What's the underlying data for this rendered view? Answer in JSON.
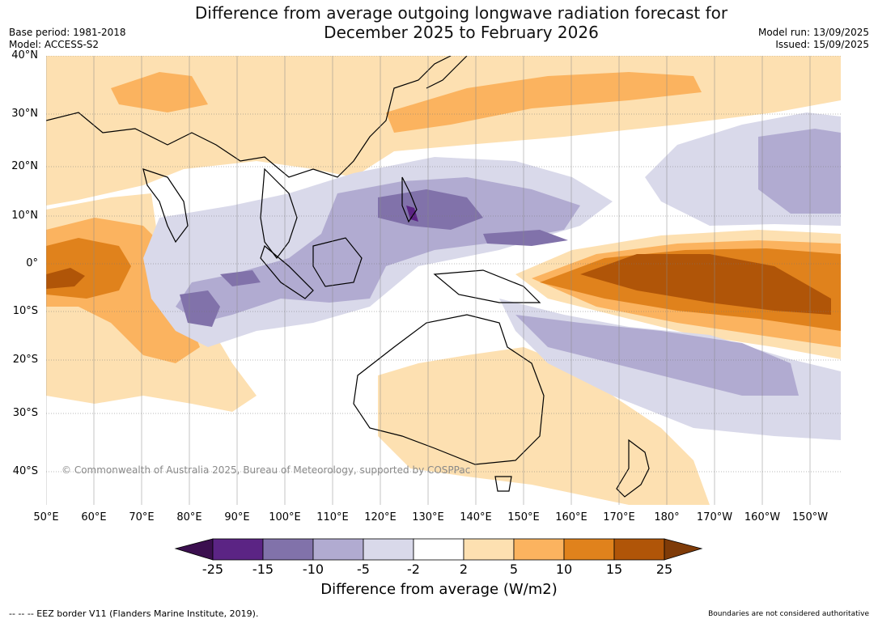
{
  "title": {
    "line1": "Difference from average outgoing longwave radiation forecast for",
    "line2": "December 2025 to February 2026"
  },
  "meta_left": {
    "base_period": "Base period: 1981-2018",
    "model": "Model: ACCESS-S2"
  },
  "meta_right": {
    "model_run": "Model run: 13/09/2025",
    "issued": "Issued: 15/09/2025"
  },
  "map": {
    "lat_labels": [
      "40°N",
      "30°N",
      "20°N",
      "10°N",
      "0°",
      "10°S",
      "20°S",
      "30°S",
      "40°S"
    ],
    "lon_labels": [
      "50°E",
      "60°E",
      "70°E",
      "80°E",
      "90°E",
      "100°E",
      "110°E",
      "120°E",
      "130°E",
      "140°E",
      "150°E",
      "160°E",
      "170°E",
      "180°",
      "170°W",
      "160°W",
      "150°W"
    ],
    "copyright": "© Commonwealth of Australia 2025, Bureau of Meteorology, supported by COSPPac"
  },
  "colorbar": {
    "ticks": [
      "-25",
      "-15",
      "-10",
      "-5",
      "-2",
      "2",
      "5",
      "10",
      "15",
      "25"
    ],
    "colors": [
      "#3b0f4f",
      "#5b2484",
      "#8172aa",
      "#b1abd1",
      "#d9d9ea",
      "#ffffff",
      "#fde0b1",
      "#fbb35f",
      "#e0821c",
      "#b05508",
      "#7f3b08"
    ],
    "label": "Difference from average (W/m2)"
  },
  "footer": {
    "eez": "--  --  -- EEZ border V11 (Flanders Marine Institute, 2019).",
    "disclaimer": "Boundaries are not considered authoritative"
  }
}
